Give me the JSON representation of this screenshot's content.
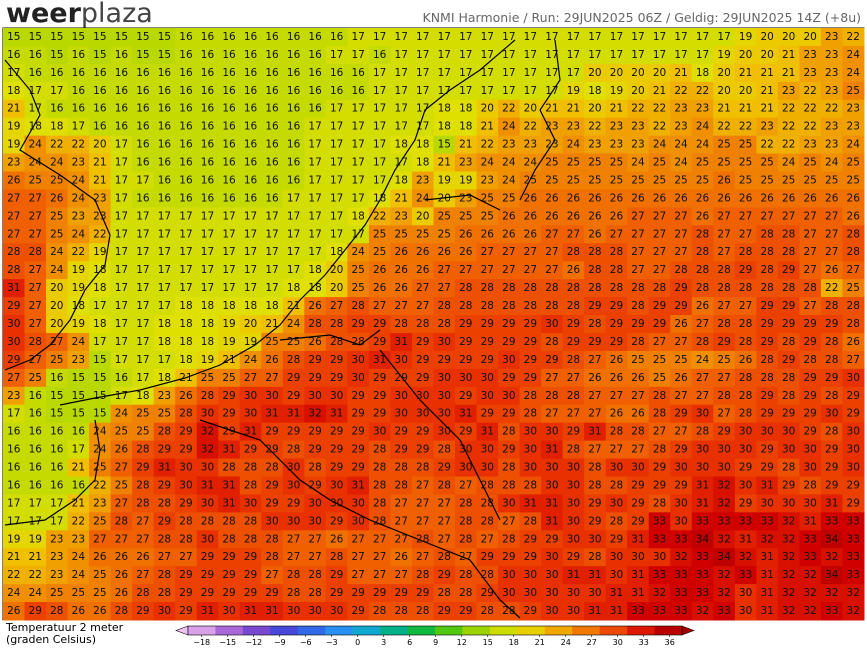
{
  "header": {
    "logo_bold": "weer",
    "logo_light": "plaza",
    "title": "KNMI Harmonie / Run: 29JUN2025 06Z / Geldig: 29JUN2025 14Z (+8u)"
  },
  "legend": {
    "label": "Temperatuur 2 meter",
    "sublabel": "(graden Celsius)",
    "ticks": [
      -18,
      -15,
      -12,
      -9,
      -6,
      -3,
      0,
      3,
      6,
      9,
      12,
      15,
      18,
      21,
      24,
      27,
      30,
      33,
      36
    ],
    "colors": [
      "#f0c0f0",
      "#c080e0",
      "#9050d0",
      "#6040d0",
      "#3050e0",
      "#3080f0",
      "#20a0f0",
      "#00b0b0",
      "#00b060",
      "#20c020",
      "#80d000",
      "#b8d800",
      "#e0e000",
      "#f0c000",
      "#f09000",
      "#f06000",
      "#e83000",
      "#d00000",
      "#a00000"
    ]
  },
  "map": {
    "rows": [
      [
        15,
        15,
        15,
        15,
        15,
        15,
        15,
        15,
        16,
        16,
        16,
        16,
        16,
        16,
        16,
        16,
        17,
        17,
        17,
        17,
        17,
        17,
        17,
        17,
        17,
        17,
        17,
        17,
        17,
        17,
        17,
        17,
        17,
        17,
        19,
        20,
        20,
        20,
        23,
        22
      ],
      [
        16,
        16,
        15,
        16,
        15,
        16,
        15,
        15,
        16,
        16,
        16,
        16,
        16,
        16,
        16,
        17,
        17,
        16,
        17,
        17,
        17,
        17,
        17,
        17,
        17,
        17,
        17,
        17,
        17,
        17,
        17,
        17,
        17,
        19,
        20,
        20,
        21,
        23,
        23,
        24
      ],
      [
        17,
        16,
        16,
        16,
        16,
        16,
        16,
        16,
        16,
        16,
        16,
        16,
        16,
        16,
        16,
        16,
        16,
        17,
        17,
        17,
        17,
        17,
        17,
        17,
        17,
        17,
        17,
        20,
        20,
        20,
        20,
        21,
        18,
        20,
        21,
        21,
        21,
        23,
        23,
        24
      ],
      [
        18,
        17,
        17,
        16,
        16,
        16,
        16,
        16,
        16,
        16,
        16,
        16,
        16,
        16,
        16,
        16,
        16,
        17,
        17,
        17,
        17,
        17,
        17,
        17,
        17,
        17,
        19,
        18,
        19,
        20,
        21,
        22,
        22,
        20,
        20,
        21,
        23,
        22,
        23,
        25
      ],
      [
        21,
        17,
        16,
        16,
        16,
        16,
        16,
        16,
        16,
        16,
        16,
        16,
        16,
        16,
        16,
        17,
        17,
        17,
        17,
        17,
        18,
        18,
        20,
        22,
        20,
        21,
        21,
        20,
        21,
        22,
        22,
        23,
        23,
        21,
        21,
        21,
        22,
        22,
        22,
        23
      ],
      [
        19,
        18,
        18,
        17,
        16,
        16,
        16,
        16,
        16,
        16,
        16,
        16,
        16,
        16,
        17,
        17,
        17,
        17,
        17,
        17,
        18,
        18,
        21,
        24,
        22,
        23,
        23,
        22,
        23,
        23,
        22,
        23,
        24,
        22,
        22,
        23,
        22,
        22,
        23,
        23
      ],
      [
        19,
        24,
        22,
        22,
        20,
        17,
        16,
        16,
        16,
        16,
        16,
        16,
        16,
        16,
        17,
        17,
        17,
        17,
        18,
        18,
        15,
        21,
        22,
        23,
        23,
        23,
        24,
        23,
        23,
        23,
        24,
        24,
        24,
        25,
        25,
        22,
        22,
        23,
        23,
        24
      ],
      [
        23,
        24,
        24,
        23,
        21,
        17,
        16,
        16,
        16,
        16,
        16,
        16,
        16,
        16,
        17,
        17,
        17,
        17,
        17,
        18,
        21,
        23,
        24,
        24,
        24,
        25,
        25,
        25,
        25,
        24,
        25,
        24,
        25,
        25,
        25,
        25,
        24,
        25,
        24,
        25
      ],
      [
        26,
        25,
        25,
        24,
        21,
        17,
        17,
        16,
        16,
        16,
        16,
        16,
        16,
        16,
        17,
        17,
        17,
        17,
        18,
        23,
        19,
        19,
        23,
        24,
        25,
        25,
        25,
        25,
        25,
        25,
        25,
        25,
        25,
        26,
        25,
        25,
        25,
        25,
        25,
        25
      ],
      [
        27,
        27,
        26,
        24,
        23,
        17,
        16,
        16,
        16,
        16,
        16,
        16,
        16,
        17,
        17,
        17,
        17,
        18,
        21,
        24,
        20,
        23,
        25,
        25,
        26,
        26,
        26,
        26,
        26,
        26,
        26,
        26,
        26,
        26,
        26,
        26,
        26,
        26,
        26,
        26
      ],
      [
        27,
        27,
        25,
        23,
        23,
        17,
        17,
        17,
        17,
        17,
        17,
        17,
        17,
        17,
        17,
        17,
        18,
        22,
        23,
        20,
        25,
        25,
        25,
        26,
        26,
        26,
        26,
        26,
        26,
        27,
        27,
        27,
        26,
        27,
        27,
        27,
        27,
        27,
        27,
        26
      ],
      [
        27,
        27,
        25,
        24,
        22,
        17,
        17,
        17,
        17,
        17,
        17,
        17,
        17,
        17,
        17,
        17,
        17,
        25,
        25,
        25,
        25,
        26,
        26,
        26,
        26,
        27,
        27,
        26,
        27,
        27,
        27,
        27,
        28,
        27,
        27,
        28,
        28,
        27,
        27,
        28
      ],
      [
        28,
        28,
        24,
        22,
        19,
        17,
        17,
        17,
        17,
        17,
        17,
        17,
        17,
        17,
        17,
        18,
        24,
        25,
        26,
        26,
        26,
        26,
        27,
        27,
        27,
        27,
        28,
        28,
        28,
        27,
        27,
        27,
        28,
        27,
        28,
        28,
        28,
        27,
        27,
        28
      ],
      [
        28,
        27,
        24,
        19,
        18,
        17,
        17,
        17,
        17,
        17,
        17,
        17,
        17,
        17,
        18,
        20,
        25,
        26,
        26,
        26,
        27,
        27,
        27,
        27,
        27,
        27,
        26,
        28,
        28,
        27,
        27,
        28,
        28,
        28,
        29,
        28,
        29,
        27,
        26,
        27
      ],
      [
        31,
        27,
        20,
        19,
        18,
        17,
        17,
        17,
        17,
        17,
        17,
        17,
        17,
        18,
        18,
        20,
        25,
        26,
        26,
        27,
        27,
        28,
        28,
        28,
        28,
        28,
        28,
        28,
        28,
        28,
        28,
        29,
        28,
        28,
        28,
        28,
        28,
        28,
        22,
        25
      ],
      [
        29,
        27,
        20,
        18,
        17,
        17,
        17,
        17,
        18,
        18,
        18,
        18,
        18,
        21,
        26,
        27,
        28,
        27,
        27,
        27,
        28,
        28,
        28,
        28,
        28,
        28,
        28,
        29,
        29,
        28,
        29,
        29,
        26,
        27,
        27,
        29,
        29,
        27,
        28,
        28
      ],
      [
        30,
        27,
        20,
        19,
        18,
        17,
        17,
        18,
        18,
        18,
        19,
        20,
        21,
        24,
        28,
        28,
        29,
        29,
        28,
        28,
        28,
        29,
        29,
        29,
        29,
        30,
        29,
        28,
        29,
        29,
        29,
        26,
        27,
        28,
        28,
        29,
        29,
        29,
        29,
        28
      ],
      [
        30,
        28,
        27,
        24,
        17,
        17,
        17,
        18,
        18,
        18,
        19,
        19,
        25,
        25,
        26,
        28,
        28,
        29,
        31,
        29,
        30,
        29,
        29,
        29,
        29,
        28,
        29,
        29,
        29,
        28,
        27,
        27,
        28,
        29,
        28,
        29,
        28,
        29,
        28,
        26
      ],
      [
        29,
        27,
        25,
        23,
        15,
        17,
        17,
        17,
        18,
        19,
        21,
        24,
        26,
        28,
        29,
        29,
        30,
        31,
        30,
        29,
        29,
        29,
        29,
        30,
        29,
        29,
        28,
        27,
        26,
        25,
        25,
        25,
        24,
        25,
        26,
        28,
        29,
        28,
        28,
        27
      ],
      [
        27,
        25,
        16,
        15,
        15,
        16,
        17,
        18,
        21,
        25,
        25,
        27,
        27,
        29,
        29,
        29,
        30,
        29,
        29,
        29,
        30,
        30,
        30,
        29,
        29,
        27,
        27,
        26,
        26,
        26,
        25,
        26,
        27,
        27,
        28,
        28,
        28,
        29,
        29,
        30
      ],
      [
        23,
        16,
        15,
        15,
        15,
        17,
        18,
        23,
        26,
        28,
        29,
        30,
        30,
        29,
        30,
        30,
        29,
        29,
        30,
        30,
        30,
        29,
        30,
        30,
        28,
        28,
        28,
        27,
        27,
        27,
        28,
        27,
        27,
        28,
        28,
        29,
        28,
        29,
        28,
        29
      ],
      [
        17,
        16,
        15,
        15,
        15,
        24,
        25,
        25,
        28,
        30,
        29,
        30,
        31,
        31,
        32,
        31,
        29,
        29,
        30,
        30,
        30,
        31,
        29,
        29,
        28,
        27,
        27,
        27,
        26,
        26,
        28,
        29,
        30,
        27,
        28,
        29,
        29,
        29,
        30,
        29
      ],
      [
        16,
        16,
        16,
        16,
        24,
        25,
        25,
        28,
        29,
        32,
        29,
        31,
        29,
        29,
        29,
        29,
        29,
        30,
        29,
        29,
        30,
        29,
        31,
        28,
        30,
        30,
        29,
        31,
        28,
        28,
        27,
        27,
        28,
        29,
        30,
        30,
        30,
        29,
        28,
        30
      ],
      [
        16,
        16,
        16,
        17,
        24,
        26,
        28,
        29,
        29,
        32,
        31,
        29,
        29,
        28,
        29,
        29,
        29,
        28,
        29,
        29,
        28,
        30,
        30,
        29,
        30,
        31,
        28,
        27,
        27,
        27,
        28,
        29,
        30,
        30,
        30,
        29,
        30,
        30,
        29,
        30
      ],
      [
        16,
        16,
        16,
        21,
        25,
        27,
        29,
        31,
        30,
        30,
        28,
        28,
        28,
        30,
        28,
        29,
        29,
        28,
        28,
        28,
        29,
        30,
        30,
        28,
        30,
        30,
        30,
        28,
        30,
        30,
        29,
        30,
        30,
        30,
        29,
        29,
        28,
        30,
        29,
        30
      ],
      [
        16,
        16,
        16,
        16,
        22,
        25,
        28,
        29,
        30,
        31,
        31,
        28,
        29,
        30,
        29,
        30,
        31,
        28,
        28,
        27,
        28,
        27,
        28,
        28,
        28,
        30,
        30,
        28,
        28,
        29,
        29,
        29,
        31,
        32,
        30,
        31,
        29,
        28,
        29,
        29
      ],
      [
        17,
        17,
        17,
        21,
        23,
        27,
        28,
        28,
        29,
        30,
        31,
        30,
        29,
        29,
        30,
        30,
        30,
        28,
        27,
        27,
        27,
        28,
        28,
        30,
        31,
        31,
        30,
        29,
        30,
        29,
        28,
        30,
        31,
        32,
        29,
        30,
        30,
        30,
        31,
        29
      ],
      [
        17,
        17,
        17,
        22,
        25,
        28,
        27,
        29,
        28,
        28,
        28,
        28,
        30,
        30,
        30,
        29,
        30,
        28,
        27,
        27,
        27,
        28,
        28,
        27,
        28,
        31,
        30,
        29,
        28,
        29,
        33,
        30,
        33,
        33,
        33,
        33,
        32,
        31,
        33,
        33
      ],
      [
        19,
        19,
        23,
        23,
        27,
        27,
        27,
        28,
        28,
        30,
        28,
        28,
        28,
        27,
        27,
        26,
        27,
        27,
        27,
        28,
        27,
        28,
        27,
        28,
        29,
        29,
        30,
        30,
        29,
        31,
        33,
        33,
        34,
        32,
        31,
        32,
        32,
        33,
        34,
        33
      ],
      [
        21,
        21,
        23,
        24,
        26,
        26,
        26,
        27,
        27,
        29,
        29,
        29,
        28,
        27,
        27,
        28,
        27,
        27,
        26,
        27,
        28,
        27,
        29,
        29,
        29,
        30,
        29,
        28,
        30,
        30,
        30,
        32,
        33,
        34,
        32,
        31,
        32,
        33,
        32,
        33
      ],
      [
        22,
        22,
        23,
        24,
        25,
        26,
        27,
        28,
        29,
        29,
        29,
        29,
        27,
        28,
        28,
        29,
        27,
        27,
        27,
        28,
        29,
        28,
        28,
        30,
        30,
        30,
        31,
        31,
        30,
        31,
        33,
        33,
        33,
        32,
        33,
        31,
        32,
        32,
        34,
        33
      ],
      [
        24,
        24,
        25,
        25,
        25,
        26,
        28,
        28,
        29,
        29,
        29,
        29,
        29,
        28,
        28,
        29,
        29,
        29,
        29,
        29,
        28,
        28,
        29,
        30,
        30,
        30,
        30,
        30,
        31,
        31,
        32,
        33,
        33,
        32,
        30,
        31,
        32,
        32,
        32,
        32
      ],
      [
        26,
        29,
        28,
        26,
        26,
        28,
        29,
        30,
        29,
        31,
        30,
        31,
        31,
        30,
        30,
        30,
        29,
        28,
        28,
        28,
        29,
        29,
        28,
        28,
        29,
        30,
        30,
        31,
        31,
        33,
        33,
        33,
        32,
        33,
        30,
        31,
        32,
        32,
        33,
        32
      ]
    ]
  }
}
